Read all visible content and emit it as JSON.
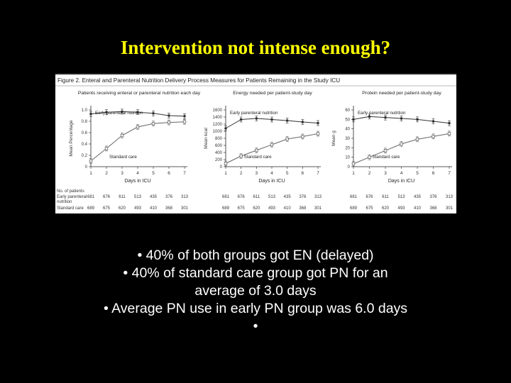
{
  "slide": {
    "title": "Intervention not intense enough?",
    "bullets": [
      "• 40% of both groups got EN (delayed)",
      "• 40% of standard care group got PN for an",
      "average of 3.0 days",
      "• Average PN use in early PN group was 6.0 days",
      "•"
    ]
  },
  "figure": {
    "caption": "Figure 2. Enteral and Parenteral Nutrition Delivery Process Measures for Patients Remaining in the Study ICU",
    "colors": {
      "early": "#333333",
      "standard": "#666666",
      "axis": "#222222"
    },
    "patients_header": [
      "No. of patients",
      "Early parenteral",
      "nutrition",
      "Standard care"
    ]
  },
  "chart_data": [
    {
      "type": "line",
      "title": "Patients receiving enteral or parenteral nutrition each day",
      "xlabel": "Days in ICU",
      "ylabel": "Mean Percentage",
      "x": [
        1,
        2,
        3,
        4,
        5,
        6,
        7
      ],
      "xlim": [
        1,
        7
      ],
      "ylim": [
        0,
        1.0
      ],
      "yticks": [
        "1.0",
        "0.8",
        "0.6",
        "0.4",
        "0.2",
        "0"
      ],
      "series": [
        {
          "name": "Early parenteral nutrition",
          "values": [
            0.93,
            0.96,
            0.97,
            0.96,
            0.94,
            0.9,
            0.89
          ]
        },
        {
          "name": "Standard care",
          "values": [
            0.1,
            0.32,
            0.55,
            0.7,
            0.76,
            0.78,
            0.79
          ]
        }
      ],
      "patients": {
        "early": [
          "681",
          "676",
          "611",
          "513",
          "435",
          "376",
          "313"
        ],
        "standard": [
          "689",
          "675",
          "620",
          "493",
          "410",
          "368",
          "301"
        ]
      }
    },
    {
      "type": "line",
      "title": "Energy needed per patient-study day",
      "xlabel": "Days in ICU",
      "ylabel": "Mean kcal",
      "x": [
        1,
        2,
        3,
        4,
        5,
        6,
        7
      ],
      "xlim": [
        1,
        7
      ],
      "ylim": [
        0,
        1600
      ],
      "yticks": [
        "1600",
        "1400",
        "1200",
        "1000",
        "800",
        "600",
        "400",
        "200",
        "0"
      ],
      "series": [
        {
          "name": "Early parenteral nutrition",
          "values": [
            1080,
            1330,
            1360,
            1330,
            1300,
            1260,
            1230
          ]
        },
        {
          "name": "Standard care",
          "values": [
            90,
            300,
            460,
            620,
            780,
            850,
            930
          ]
        }
      ],
      "patients": {
        "early": [
          "681",
          "676",
          "611",
          "513",
          "435",
          "376",
          "313"
        ],
        "standard": [
          "689",
          "675",
          "620",
          "493",
          "410",
          "368",
          "301"
        ]
      }
    },
    {
      "type": "line",
      "title": "Protein needed per patient-study day",
      "xlabel": "Days in ICU",
      "ylabel": "Mean g",
      "x": [
        1,
        2,
        3,
        4,
        5,
        6,
        7
      ],
      "xlim": [
        1,
        7
      ],
      "ylim": [
        0,
        60
      ],
      "yticks": [
        "60",
        "50",
        "40",
        "30",
        "20",
        "10",
        "0"
      ],
      "series": [
        {
          "name": "Early parenteral nutrition",
          "values": [
            50,
            53,
            52,
            51,
            50,
            48,
            46
          ]
        },
        {
          "name": "Standard care",
          "values": [
            3,
            10,
            17,
            24,
            29,
            32,
            35
          ]
        }
      ],
      "patients": {
        "early": [
          "681",
          "676",
          "611",
          "513",
          "435",
          "376",
          "313"
        ],
        "standard": [
          "689",
          "675",
          "620",
          "493",
          "410",
          "368",
          "301"
        ]
      }
    }
  ]
}
